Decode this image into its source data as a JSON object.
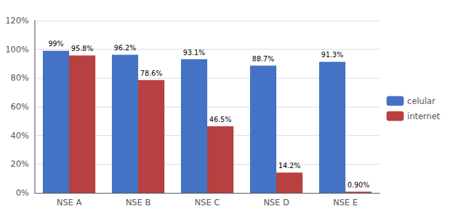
{
  "chart_data": {
    "type": "bar",
    "categories": [
      "NSE A",
      "NSE B",
      "NSE C",
      "NSE D",
      "NSE E"
    ],
    "series": [
      {
        "name": "celular",
        "color": "#4472C4",
        "values": [
          99.0,
          96.2,
          93.1,
          88.7,
          91.3
        ],
        "value_labels": [
          "99%",
          "96.2%",
          "93.1%",
          "88.7%",
          "91.3%"
        ]
      },
      {
        "name": "internet",
        "color": "#B84040",
        "values": [
          95.8,
          78.6,
          46.5,
          14.2,
          0.9
        ],
        "value_labels": [
          "95.8%",
          "78.6%",
          "46.5%",
          "14.2%",
          "0.90%"
        ]
      }
    ],
    "ylim": [
      0,
      120
    ],
    "yticks": [
      {
        "value": 0,
        "label": "0%"
      },
      {
        "value": 20,
        "label": "20%"
      },
      {
        "value": 40,
        "label": "40%"
      },
      {
        "value": 60,
        "label": "60%"
      },
      {
        "value": 80,
        "label": "80%"
      },
      {
        "value": 100,
        "label": "100%"
      },
      {
        "value": 120,
        "label": "120%"
      }
    ],
    "grid": true,
    "legend": "right",
    "data_labels": true
  }
}
